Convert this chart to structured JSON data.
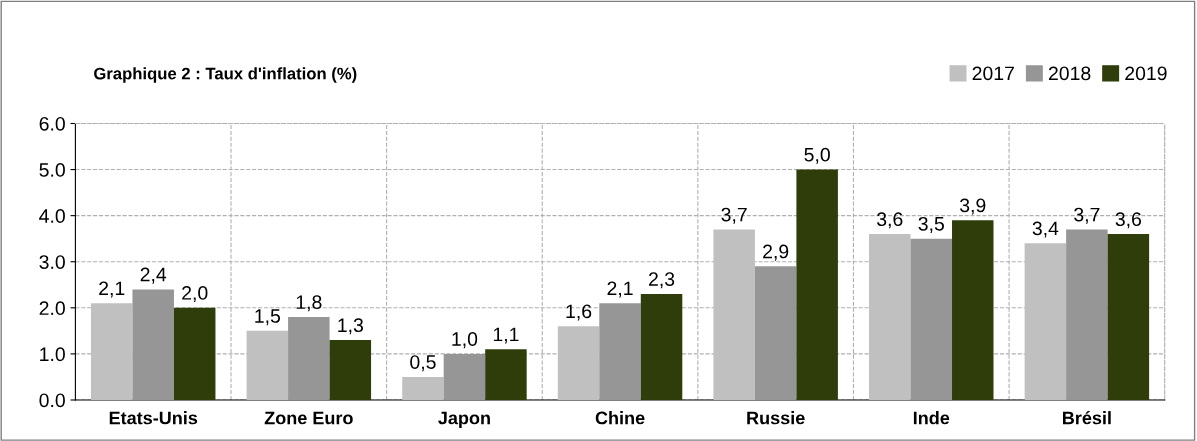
{
  "chart_data": {
    "type": "bar",
    "title": "Graphique 2 : Taux d'inflation (%)",
    "categories": [
      "Etats-Unis",
      "Zone Euro",
      "Japon",
      "Chine",
      "Russie",
      "Inde",
      "Brésil"
    ],
    "series": [
      {
        "name": "2017",
        "color": "#c0c0c0",
        "values": [
          2.1,
          1.5,
          0.5,
          1.6,
          3.7,
          3.6,
          3.4
        ],
        "value_labels": [
          "2,1",
          "1,5",
          "0,5",
          "1,6",
          "3,7",
          "3,6",
          "3,4"
        ]
      },
      {
        "name": "2018",
        "color": "#969696",
        "values": [
          2.4,
          1.8,
          1.0,
          2.1,
          2.9,
          3.5,
          3.7
        ],
        "value_labels": [
          "2,4",
          "1,8",
          "1,0",
          "2,1",
          "2,9",
          "3,5",
          "3,7"
        ]
      },
      {
        "name": "2019",
        "color": "#2f3d0a",
        "values": [
          2.0,
          1.3,
          1.1,
          2.3,
          5.0,
          3.9,
          3.6
        ],
        "value_labels": [
          "2,0",
          "1,3",
          "1,1",
          "2,3",
          "5,0",
          "3,9",
          "3,6"
        ]
      }
    ],
    "ylim": [
      0,
      6
    ],
    "yticks": [
      {
        "value": 0,
        "label": "0.0"
      },
      {
        "value": 1,
        "label": "1.0"
      },
      {
        "value": 2,
        "label": "2.0"
      },
      {
        "value": 3,
        "label": "3.0"
      },
      {
        "value": 4,
        "label": "4.0"
      },
      {
        "value": 5,
        "label": "5.0"
      },
      {
        "value": 6,
        "label": "6.0"
      }
    ],
    "grid": "y",
    "legend": "top right"
  }
}
